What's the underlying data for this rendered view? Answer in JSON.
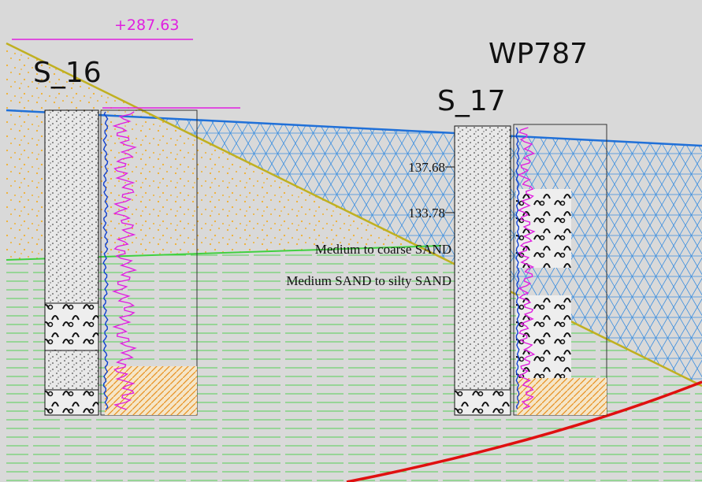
{
  "header": {
    "elevation": "+287.63",
    "section": "WP787"
  },
  "boreholes": [
    {
      "name": "S_16"
    },
    {
      "name": "S_17",
      "levels": [
        "137.68",
        "133.78"
      ]
    }
  ],
  "layers": [
    "Medium to coarse SAND",
    "Medium SAND to silty SAND"
  ]
}
